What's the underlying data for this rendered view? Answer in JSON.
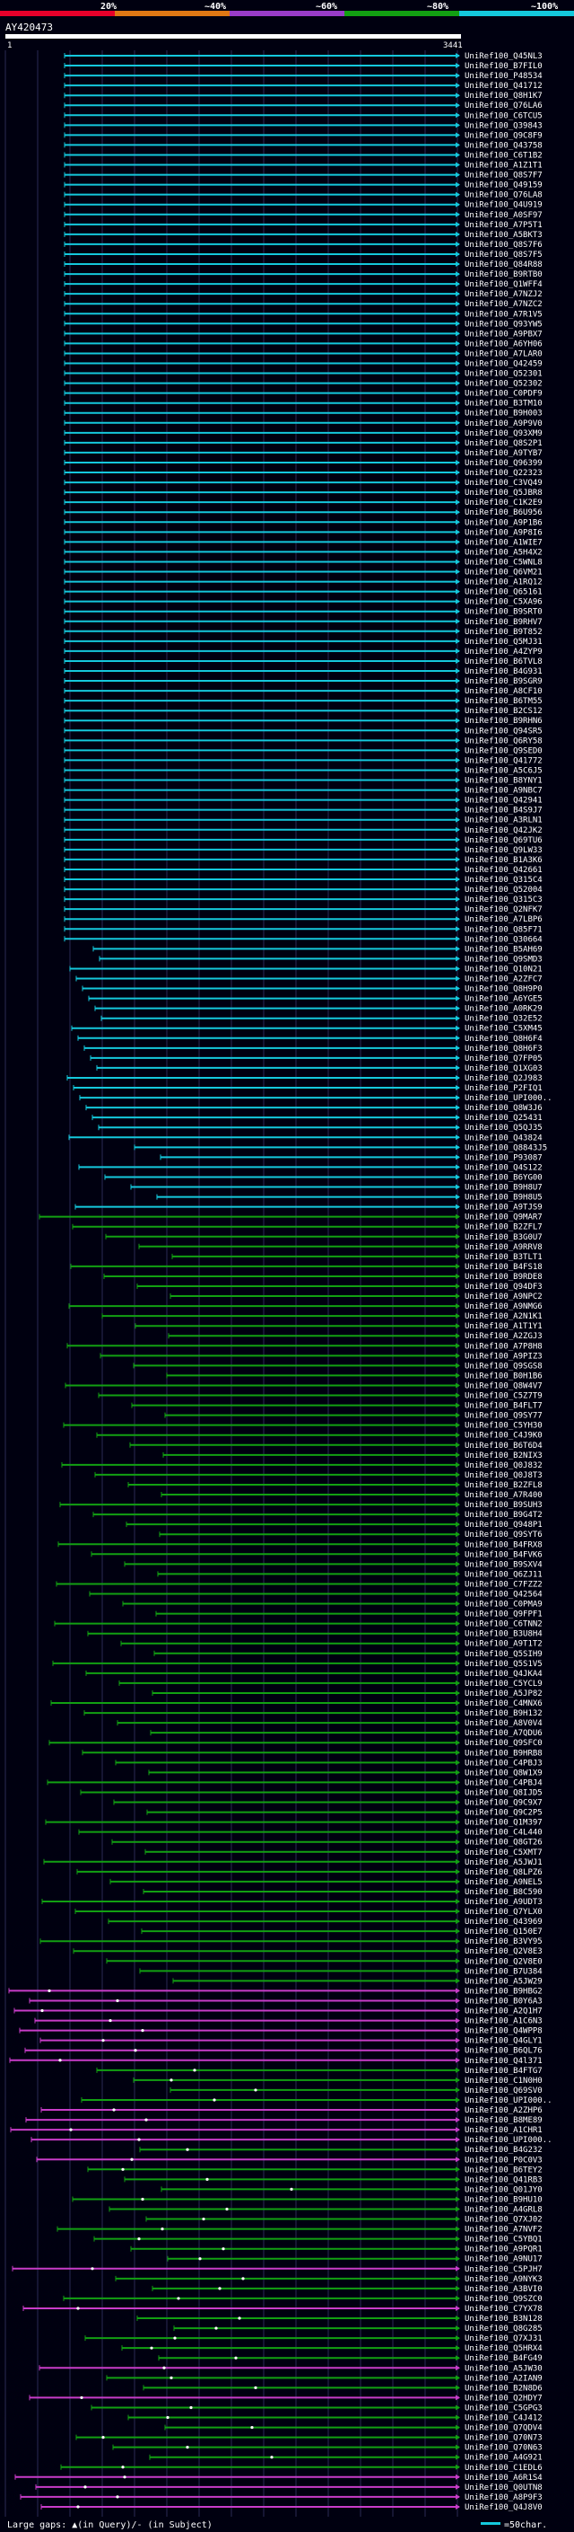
{
  "header": {
    "color_scale": [
      {
        "label": "20%",
        "color": "#e8002a"
      },
      {
        "label": "~40%",
        "color": "#e07814"
      },
      {
        "label": "~60%",
        "color": "#9a3cc8"
      },
      {
        "label": "~80%",
        "color": "#12a012"
      },
      {
        "label": "~100%",
        "color": "#14c8dc"
      }
    ],
    "query_id": "AY420473",
    "query_start": "1",
    "query_end": "3441"
  },
  "legend": {
    "text": "Large gaps: ▲(in Query)/- (in Subject)",
    "scale_text": "=50char."
  },
  "colors": {
    "cyan": "#14c8dc",
    "green": "#12a012",
    "magenta": "#c83cc8",
    "gap_marker": "#ffffff"
  },
  "hits": {
    "cyan": [
      "UniRef100_Q45NL3",
      "UniRef100_B7FIL0",
      "UniRef100_P48534",
      "UniRef100_Q41712",
      "UniRef100_Q8H1K7",
      "UniRef100_Q76LA6",
      "UniRef100_C6TCU5",
      "UniRef100_Q39843",
      "UniRef100_Q9C8F9",
      "UniRef100_Q43758",
      "UniRef100_C6T1B2",
      "UniRef100_A1Z1T1",
      "UniRef100_Q8S7F7",
      "UniRef100_Q49159",
      "UniRef100_Q76LA8",
      "UniRef100_Q4U919",
      "UniRef100_A0SF97",
      "UniRef100_A7P5T1",
      "UniRef100_A5BKT3",
      "UniRef100_Q8S7F6",
      "UniRef100_Q8S7F5",
      "UniRef100_Q84R88",
      "UniRef100_B9RTB0",
      "UniRef100_Q1WFF4",
      "UniRef100_A7NZJ2",
      "UniRef100_A7NZC2",
      "UniRef100_A7R1V5",
      "UniRef100_Q93YW5",
      "UniRef100_A9PBX7",
      "UniRef100_A6YH06",
      "UniRef100_A7LAR0",
      "UniRef100_Q42459",
      "UniRef100_Q52301",
      "UniRef100_Q52302",
      "UniRef100_C0PDF9",
      "UniRef100_B3TM10",
      "UniRef100_B9H003",
      "UniRef100_A9P9V0",
      "UniRef100_Q93XM9",
      "UniRef100_Q8S2P1",
      "UniRef100_A9TYB7",
      "UniRef100_Q96399",
      "UniRef100_Q22323",
      "UniRef100_C3VQ49",
      "UniRef100_Q5JBR8",
      "UniRef100_C1K2E9",
      "UniRef100_B6U956",
      "UniRef100_A9P1B6",
      "UniRef100_A9P8I6",
      "UniRef100_A1WIE7",
      "UniRef100_A5H4X2",
      "UniRef100_C5WNL8",
      "UniRef100_Q6VM21",
      "UniRef100_A1RQ12",
      "UniRef100_Q65161",
      "UniRef100_C5XA96",
      "UniRef100_B9SRT0",
      "UniRef100_B9RHV7",
      "UniRef100_B9T852",
      "UniRef100_Q5MJ31",
      "UniRef100_A4ZYP9",
      "UniRef100_B6TVL8",
      "UniRef100_B4G931",
      "UniRef100_B9SGR9",
      "UniRef100_A8CF10",
      "UniRef100_B6TM55",
      "UniRef100_B2CS12",
      "UniRef100_B9RHN6",
      "UniRef100_Q94SR5",
      "UniRef100_Q6RY58",
      "UniRef100_Q9SED0",
      "UniRef100_Q41772",
      "UniRef100_A5C6J5",
      "UniRef100_B8YNY1",
      "UniRef100_A9NBC7",
      "UniRef100_Q42941",
      "UniRef100_B4S9J7",
      "UniRef100_A3RLN1",
      "UniRef100_Q42JK2",
      "UniRef100_Q69TU6",
      "UniRef100_Q9LW33",
      "UniRef100_B1A3K6",
      "UniRef100_Q42661",
      "UniRef100_Q315C4",
      "UniRef100_Q52004",
      "UniRef100_Q315C3",
      "UniRef100_Q2NFK7",
      "UniRef100_A7LBP6",
      "UniRef100_Q85F71",
      "UniRef100_Q30664",
      "UniRef100_B5AH69",
      "UniRef100_Q9SMD3",
      "UniRef100_Q10N21",
      "UniRef100_A2ZFC7",
      "UniRef100_Q8H9P0",
      "UniRef100_A6YGE5",
      "UniRef100_A0RK29",
      "UniRef100_Q32E52",
      "UniRef100_C5XM45",
      "UniRef100_Q8H6F4",
      "UniRef100_Q8H6F3",
      "UniRef100_Q7FP05",
      "UniRef100_Q1XG03",
      "UniRef100_Q2J983",
      "UniRef100_P2FIQ1",
      "UniRef100_UPI000..",
      "UniRef100_Q8W3J6",
      "UniRef100_Q25431",
      "UniRef100_Q5QJ35",
      "UniRef100_Q43824",
      "UniRef100_Q8843J5",
      "UniRef100_P93087",
      "UniRef100_Q4S122",
      "UniRef100_B6YG00",
      "UniRef100_B9H8U7",
      "UniRef100_B9H8U5",
      "UniRef100_A9TJS9"
    ],
    "green": [
      "UniRef100_Q9MAR7",
      "UniRef100_B2ZFL7",
      "UniRef100_B3G0U7",
      "UniRef100_A9RRV8",
      "UniRef100_B3TLT1",
      "UniRef100_B4FS18",
      "UniRef100_B9RDE8",
      "UniRef100_Q94DF3",
      "UniRef100_A9NPC2",
      "UniRef100_A9NMG6",
      "UniRef100_A2N1K1",
      "UniRef100_A1T1Y1",
      "UniRef100_A2ZGJ3",
      "UniRef100_A7P8H8",
      "UniRef100_A9PIZ3",
      "UniRef100_Q9SGS8",
      "UniRef100_B0H1B6",
      "UniRef100_Q8W4V7",
      "UniRef100_C5Z7T9",
      "UniRef100_B4FLT7",
      "UniRef100_Q9SY77",
      "UniRef100_C5YH30",
      "UniRef100_C4J9K0",
      "UniRef100_B6T6D4",
      "UniRef100_B2NIX3",
      "UniRef100_Q0J832",
      "UniRef100_Q0J8T3",
      "UniRef100_B2ZFL8",
      "UniRef100_A7R400",
      "UniRef100_B9SUH3",
      "UniRef100_B9G4T2",
      "UniRef100_Q948P1",
      "UniRef100_Q9SYT6",
      "UniRef100_B4FRX8",
      "UniRef100_B4FVK6",
      "UniRef100_B9SXV4",
      "UniRef100_Q6ZJ11",
      "UniRef100_C7FZZ2",
      "UniRef100_Q42564",
      "UniRef100_C0PMA9",
      "UniRef100_Q9FPF1",
      "UniRef100_C6TNN2",
      "UniRef100_B3U8H4",
      "UniRef100_A9T1T2",
      "UniRef100_Q5SIH9",
      "UniRef100_Q5S1V5",
      "UniRef100_Q4JKA4",
      "UniRef100_C5YCL9",
      "UniRef100_A5JP82",
      "UniRef100_C4MNX6",
      "UniRef100_B9H132",
      "UniRef100_A8V0V4",
      "UniRef100_A7QDU6",
      "UniRef100_Q9SFC0",
      "UniRef100_B9HRB8",
      "UniRef100_C4PBJ3",
      "UniRef100_Q8W1X9",
      "UniRef100_C4PBJ4",
      "UniRef100_Q8IJD5",
      "UniRef100_Q9C9X7",
      "UniRef100_Q9C2P5",
      "UniRef100_Q1M397",
      "UniRef100_C4L440",
      "UniRef100_Q8GT26",
      "UniRef100_C5XMT7",
      "UniRef100_A5JWJ1",
      "UniRef100_Q8LPZ6",
      "UniRef100_A9NEL5",
      "UniRef100_B8C590",
      "UniRef100_A9UDT3",
      "UniRef100_Q7YLX0",
      "UniRef100_Q43969",
      "UniRef100_Q150E7",
      "UniRef100_B3VY95",
      "UniRef100_Q2V8E3",
      "UniRef100_Q2V8E0",
      "UniRef100_B7U384",
      "UniRef100_A5JW29"
    ],
    "mixed": [
      {
        "label": "UniRef100_B9HBG2",
        "color": "magenta"
      },
      {
        "label": "UniRef100_B0Y6A3",
        "color": "magenta"
      },
      {
        "label": "UniRef100_A2Q1H7",
        "color": "magenta"
      },
      {
        "label": "UniRef100_A1C6N3",
        "color": "magenta"
      },
      {
        "label": "UniRef100_Q4WPP8",
        "color": "magenta"
      },
      {
        "label": "UniRef100_Q4GLY1",
        "color": "magenta"
      },
      {
        "label": "UniRef100_B6QL76",
        "color": "magenta"
      },
      {
        "label": "UniRef100_Q4l371",
        "color": "magenta"
      },
      {
        "label": "UniRef100_B4FTG7",
        "color": "green"
      },
      {
        "label": "UniRef100_C1N0H0",
        "color": "green"
      },
      {
        "label": "UniRef100_Q69SV0",
        "color": "green"
      },
      {
        "label": "UniRef100_UPI000..",
        "color": "green"
      },
      {
        "label": "UniRef100_A2ZHP6",
        "color": "magenta"
      },
      {
        "label": "UniRef100_B8ME89",
        "color": "magenta"
      },
      {
        "label": "UniRef100_A1CHR1",
        "color": "magenta"
      },
      {
        "label": "UniRef100_UPI000..",
        "color": "magenta"
      },
      {
        "label": "UniRef100_B4G232",
        "color": "green"
      },
      {
        "label": "UniRef100_P0C0V3",
        "color": "magenta"
      },
      {
        "label": "UniRef100_B6TEY2",
        "color": "green"
      },
      {
        "label": "UniRef100_Q41RB3",
        "color": "green"
      },
      {
        "label": "UniRef100_Q01JY0",
        "color": "green"
      },
      {
        "label": "UniRef100_B9HU10",
        "color": "green"
      },
      {
        "label": "UniRef100_A4GRL8",
        "color": "green"
      },
      {
        "label": "UniRef100_Q7XJ02",
        "color": "green"
      },
      {
        "label": "UniRef100_A7NVF2",
        "color": "green"
      },
      {
        "label": "UniRef100_C5YBQ1",
        "color": "green"
      },
      {
        "label": "UniRef100_A9PQR1",
        "color": "green"
      },
      {
        "label": "UniRef100_A9NU17",
        "color": "green"
      },
      {
        "label": "UniRef100_C5PJH7",
        "color": "magenta"
      },
      {
        "label": "UniRef100_A9NYK3",
        "color": "green"
      },
      {
        "label": "UniRef100_A3BVI0",
        "color": "green"
      },
      {
        "label": "UniRef100_Q9SZC0",
        "color": "green"
      },
      {
        "label": "UniRef100_C7YX78",
        "color": "magenta"
      },
      {
        "label": "UniRef100_B3N128",
        "color": "green"
      },
      {
        "label": "UniRef100_Q8G285",
        "color": "green"
      },
      {
        "label": "UniRef100_Q7XJ31",
        "color": "green"
      },
      {
        "label": "UniRef100_Q5HRX4",
        "color": "green"
      },
      {
        "label": "UniRef100_B4FG49",
        "color": "green"
      },
      {
        "label": "UniRef100_A5JW30",
        "color": "magenta"
      },
      {
        "label": "UniRef100_A2IAN9",
        "color": "green"
      },
      {
        "label": "UniRef100_B2N8D6",
        "color": "green"
      },
      {
        "label": "UniRef100_Q2HDY7",
        "color": "magenta"
      },
      {
        "label": "UniRef100_C5GPG3",
        "color": "green"
      },
      {
        "label": "UniRef100_C4J412",
        "color": "green"
      },
      {
        "label": "UniRef100_Q7QDV4",
        "color": "green"
      },
      {
        "label": "UniRef100_Q70N73",
        "color": "green"
      },
      {
        "label": "UniRef100_Q70N63",
        "color": "green"
      },
      {
        "label": "UniRef100_A4G921",
        "color": "green"
      },
      {
        "label": "UniRef100_C1EDL6",
        "color": "green"
      },
      {
        "label": "UniRef100_A6R1S4",
        "color": "magenta"
      },
      {
        "label": "UniRef100_Q0UTN8",
        "color": "magenta"
      },
      {
        "label": "UniRef100_A8P9F3",
        "color": "magenta"
      },
      {
        "label": "UniRef100_Q4J8V0",
        "color": "magenta"
      }
    ]
  }
}
